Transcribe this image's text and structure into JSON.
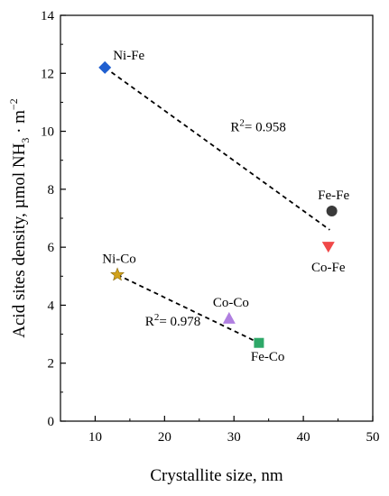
{
  "chart_data": {
    "type": "scatter",
    "xlabel": "Crystallite size, nm",
    "ylabel_main": "Acid sites density, µmol NH",
    "ylabel_sub": "3",
    "ylabel_unit": " · m",
    "ylabel_sup": "−2",
    "xlim": [
      5,
      50
    ],
    "ylim": [
      0,
      14
    ],
    "xticks": [
      10,
      20,
      30,
      40,
      50
    ],
    "yticks": [
      0,
      2,
      4,
      6,
      8,
      10,
      12,
      14
    ],
    "grid": false,
    "points": [
      {
        "label": "Ni-Fe",
        "x": 11.4,
        "y": 12.2,
        "marker": "diamond",
        "color": "#1f5fd0",
        "label_pos": "above-right"
      },
      {
        "label": "Fe-Fe",
        "x": 44.1,
        "y": 7.25,
        "marker": "circle",
        "color": "#3a3a3a",
        "label_pos": "above"
      },
      {
        "label": "Co-Fe",
        "x": 43.6,
        "y": 6.0,
        "marker": "triangle-down",
        "color": "#f04848",
        "label_pos": "below"
      },
      {
        "label": "Ni-Co",
        "x": 13.2,
        "y": 5.05,
        "marker": "star",
        "color": "#d2a21a",
        "label_pos": "above"
      },
      {
        "label": "Co-Co",
        "x": 29.3,
        "y": 3.55,
        "marker": "triangle-up",
        "color": "#b07fe0",
        "label_pos": "above"
      },
      {
        "label": "Fe-Co",
        "x": 33.6,
        "y": 2.7,
        "marker": "square",
        "color": "#2ea868",
        "label_pos": "below-right"
      }
    ],
    "fits": [
      {
        "x": [
          11.4,
          43.8
        ],
        "y": [
          12.2,
          6.6
        ],
        "style": "dashed",
        "r2_prefix": "R",
        "r2_sup": "2",
        "r2_value": "= 0.958",
        "r2_at": [
          29.5,
          10.0
        ]
      },
      {
        "x": [
          13.2,
          33.6
        ],
        "y": [
          5.05,
          2.7
        ],
        "style": "dashed",
        "r2_prefix": "R",
        "r2_sup": "2",
        "r2_value": "= 0.978",
        "r2_at": [
          17.2,
          3.3
        ]
      }
    ]
  }
}
